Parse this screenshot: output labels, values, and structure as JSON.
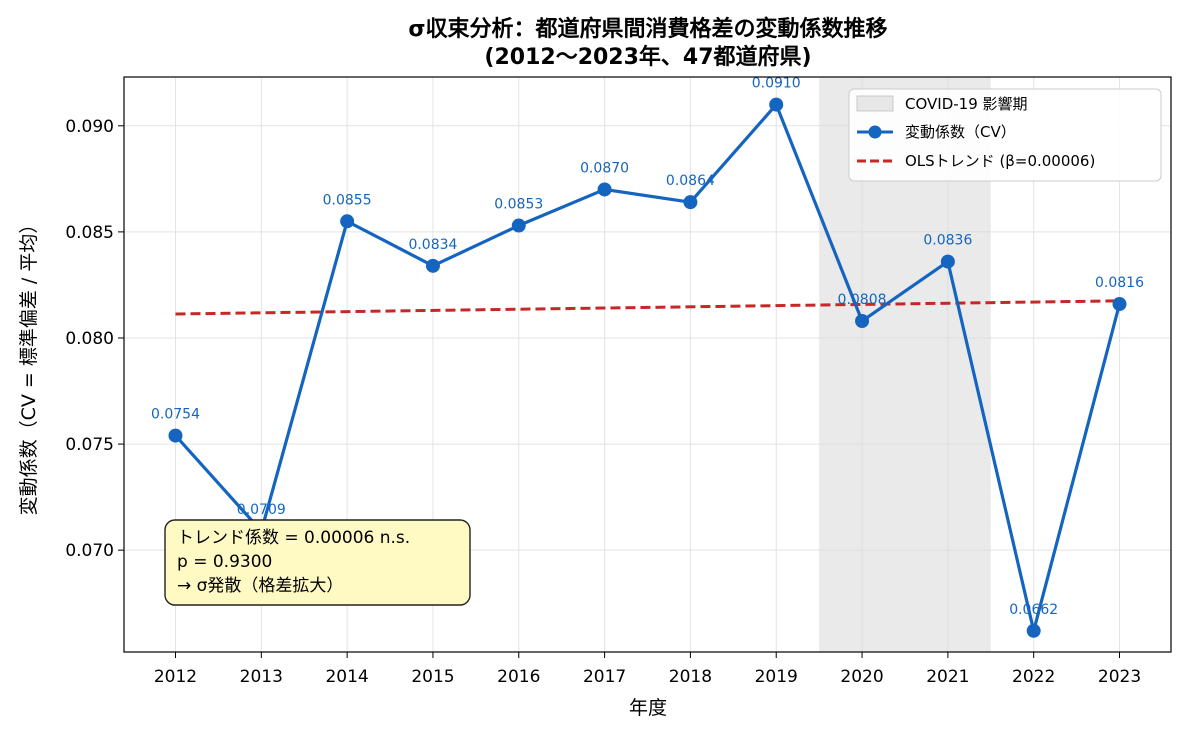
{
  "chart_data": {
    "type": "line",
    "title_line1": "σ収束分析：都道府県間消費格差の変動係数推移",
    "title_line2": "(2012〜2023年、47都道府県)",
    "xlabel": "年度",
    "ylabel": "変動係数（CV = 標準偏差 / 平均）",
    "x": [
      2012,
      2013,
      2014,
      2015,
      2016,
      2017,
      2018,
      2019,
      2020,
      2021,
      2022,
      2023
    ],
    "x_ticks": [
      "2012",
      "2013",
      "2014",
      "2015",
      "2016",
      "2017",
      "2018",
      "2019",
      "2020",
      "2021",
      "2022",
      "2023"
    ],
    "xlim": [
      2011.4,
      2023.6
    ],
    "ylim": [
      0.0652,
      0.0923
    ],
    "y_ticks": [
      0.07,
      0.075,
      0.08,
      0.085,
      0.09
    ],
    "y_tick_labels": [
      "0.070",
      "0.075",
      "0.080",
      "0.085",
      "0.090"
    ],
    "grid": true,
    "series": [
      {
        "name": "変動係数（CV）",
        "color": "#1565c0",
        "values": [
          0.0754,
          0.0709,
          0.0855,
          0.0834,
          0.0853,
          0.087,
          0.0864,
          0.091,
          0.0808,
          0.0836,
          0.0662,
          0.0816
        ],
        "labels": [
          "0.0754",
          "0.0709",
          "0.0855",
          "0.0834",
          "0.0853",
          "0.0870",
          "0.0864",
          "0.0910",
          "0.0808",
          "0.0836",
          "0.0662",
          "0.0816"
        ]
      }
    ],
    "trend": {
      "name": "OLSトレンド (β=0.00006)",
      "color": "#c62828",
      "x_start": 2012,
      "y_start": 0.08113,
      "x_end": 2023,
      "y_end": 0.08175
    },
    "shaded_region": {
      "name": "COVID-19 影響期",
      "x_start": 2019.5,
      "x_end": 2021.5,
      "color": "#d9d9d9"
    },
    "legend_position": "top-right",
    "annotation": {
      "lines": [
        "トレンド係数 = 0.00006 n.s.",
        "p = 0.9300",
        "→ σ発散（格差拡大）"
      ],
      "background": "#fff9c4"
    }
  }
}
